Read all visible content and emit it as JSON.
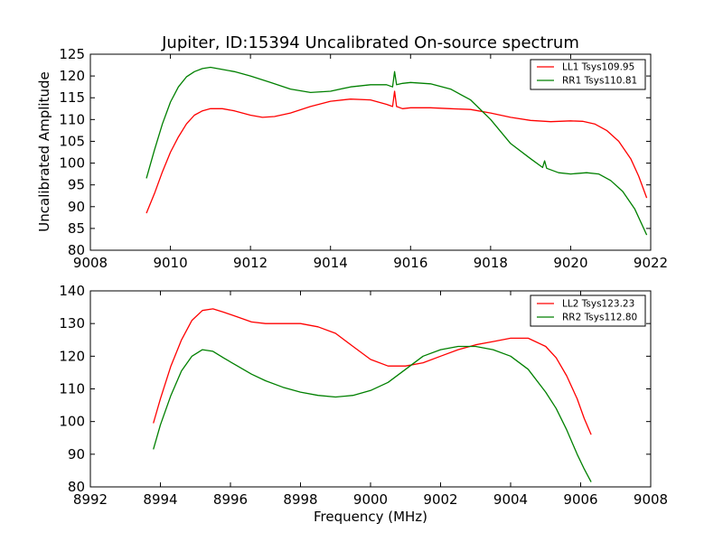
{
  "chart_data": [
    {
      "type": "line",
      "title": "Jupiter, ID:15394 Uncalibrated On-source spectrum",
      "xlabel": "",
      "ylabel": "Uncalibrated Amplitude",
      "xlim": [
        9008,
        9022
      ],
      "ylim": [
        80,
        125
      ],
      "xticks": [
        "9008",
        "9010",
        "9012",
        "9014",
        "9016",
        "9018",
        "9020",
        "9022"
      ],
      "yticks": [
        "80",
        "85",
        "90",
        "95",
        "100",
        "105",
        "110",
        "115",
        "120",
        "125"
      ],
      "legend_position": "top-right",
      "series": [
        {
          "name": "LL1 Tsys109.95",
          "color": "#ff0000",
          "x": [
            9009.4,
            9009.6,
            9009.8,
            9010.0,
            9010.2,
            9010.4,
            9010.6,
            9010.8,
            9011.0,
            9011.3,
            9011.6,
            9012.0,
            9012.3,
            9012.6,
            9013.0,
            9013.5,
            9014.0,
            9014.5,
            9015.0,
            9015.4,
            9015.55,
            9015.6,
            9015.65,
            9015.8,
            9016.0,
            9016.5,
            9017.0,
            9017.5,
            9018.0,
            9018.5,
            9019.0,
            9019.5,
            9020.0,
            9020.3,
            9020.6,
            9020.9,
            9021.2,
            9021.5,
            9021.7,
            9021.9
          ],
          "y": [
            88.5,
            93.0,
            98.0,
            102.5,
            106.0,
            109.0,
            111.0,
            112.0,
            112.5,
            112.5,
            112.0,
            111.0,
            110.5,
            110.7,
            111.5,
            113.0,
            114.2,
            114.7,
            114.5,
            113.5,
            113.0,
            116.5,
            113.0,
            112.5,
            112.7,
            112.7,
            112.5,
            112.3,
            111.5,
            110.5,
            109.8,
            109.5,
            109.7,
            109.6,
            109.0,
            107.5,
            105.0,
            101.0,
            97.0,
            92.0
          ]
        },
        {
          "name": "RR1 Tsys110.81",
          "color": "#008000",
          "x": [
            9009.4,
            9009.6,
            9009.8,
            9010.0,
            9010.2,
            9010.4,
            9010.6,
            9010.8,
            9011.0,
            9011.3,
            9011.6,
            9012.0,
            9012.5,
            9013.0,
            9013.5,
            9014.0,
            9014.5,
            9015.0,
            9015.4,
            9015.55,
            9015.6,
            9015.65,
            9015.8,
            9016.0,
            9016.5,
            9017.0,
            9017.5,
            9018.0,
            9018.5,
            9019.0,
            9019.3,
            9019.35,
            9019.4,
            9019.7,
            9020.0,
            9020.4,
            9020.7,
            9021.0,
            9021.3,
            9021.6,
            9021.9
          ],
          "y": [
            96.5,
            103.0,
            109.0,
            114.0,
            117.5,
            119.8,
            121.0,
            121.7,
            122.0,
            121.5,
            121.0,
            120.0,
            118.5,
            117.0,
            116.2,
            116.5,
            117.5,
            118.0,
            118.0,
            117.5,
            121.0,
            118.0,
            118.3,
            118.5,
            118.2,
            117.0,
            114.5,
            110.0,
            104.5,
            101.0,
            99.0,
            100.5,
            98.8,
            97.8,
            97.5,
            97.8,
            97.5,
            96.0,
            93.5,
            89.5,
            83.5
          ]
        }
      ]
    },
    {
      "type": "line",
      "title": "",
      "xlabel": "Frequency (MHz)",
      "ylabel": "",
      "xlim": [
        8992,
        9008
      ],
      "ylim": [
        80,
        140
      ],
      "xticks": [
        "8992",
        "8994",
        "8996",
        "8998",
        "9000",
        "9002",
        "9004",
        "9006",
        "9008"
      ],
      "yticks": [
        "80",
        "90",
        "100",
        "110",
        "120",
        "130",
        "140"
      ],
      "legend_position": "top-right",
      "series": [
        {
          "name": "LL2 Tsys123.23",
          "color": "#ff0000",
          "x": [
            8993.8,
            8994.0,
            8994.3,
            8994.6,
            8994.9,
            8995.2,
            8995.5,
            8995.8,
            8996.2,
            8996.6,
            8997.0,
            8997.5,
            8998.0,
            8998.5,
            8999.0,
            8999.5,
            9000.0,
            9000.5,
            9001.0,
            9001.5,
            9002.0,
            9002.5,
            9003.0,
            9003.5,
            9004.0,
            9004.5,
            9005.0,
            9005.3,
            9005.6,
            9005.9,
            9006.1,
            9006.3
          ],
          "y": [
            99.5,
            107.0,
            117.0,
            125.0,
            131.0,
            134.0,
            134.5,
            133.5,
            132.0,
            130.5,
            130.0,
            130.0,
            130.0,
            129.0,
            127.0,
            123.0,
            119.0,
            117.0,
            117.0,
            118.0,
            120.0,
            122.0,
            123.5,
            124.5,
            125.5,
            125.5,
            123.0,
            119.5,
            114.0,
            107.0,
            101.0,
            96.0
          ]
        },
        {
          "name": "RR2 Tsys112.80",
          "color": "#008000",
          "x": [
            8993.8,
            8994.0,
            8994.3,
            8994.6,
            8994.9,
            8995.2,
            8995.5,
            8995.8,
            8996.2,
            8996.6,
            8997.0,
            8997.5,
            8998.0,
            8998.5,
            8999.0,
            8999.5,
            9000.0,
            9000.5,
            9001.0,
            9001.5,
            9002.0,
            9002.5,
            9003.0,
            9003.5,
            9004.0,
            9004.5,
            9005.0,
            9005.3,
            9005.6,
            9005.9,
            9006.1,
            9006.3
          ],
          "y": [
            91.5,
            99.0,
            108.0,
            115.5,
            120.0,
            122.0,
            121.5,
            119.5,
            117.0,
            114.5,
            112.5,
            110.5,
            109.0,
            108.0,
            107.5,
            108.0,
            109.5,
            112.0,
            116.0,
            120.0,
            122.0,
            123.0,
            123.0,
            122.0,
            120.0,
            116.0,
            109.0,
            104.0,
            97.5,
            90.0,
            85.5,
            81.5
          ]
        }
      ]
    }
  ]
}
